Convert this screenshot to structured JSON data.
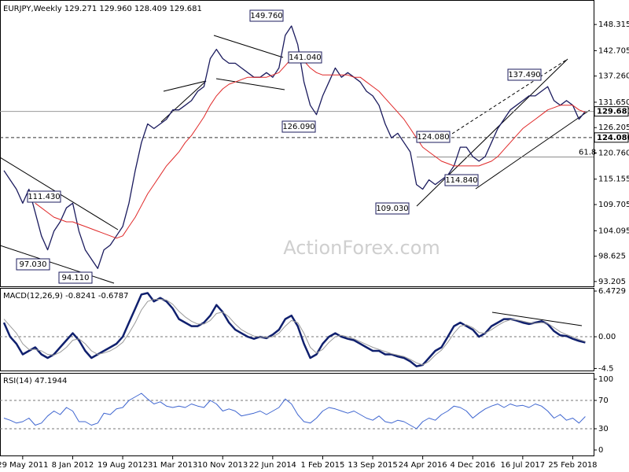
{
  "chart_data": [
    {
      "type": "line",
      "title": "EURJPY,Weekly  129.271 129.960 128.409 129.681",
      "watermark": "ActionForex.com",
      "x": [
        null,
        null,
        null,
        "29 May 2011",
        null,
        null,
        null,
        null,
        null,
        null,
        null,
        "8 Jan 2012",
        null,
        null,
        null,
        null,
        null,
        null,
        null,
        "19 Aug 2012",
        null,
        null,
        null,
        null,
        null,
        null,
        null,
        "31 Mar 2013",
        null,
        null,
        null,
        null,
        null,
        null,
        null,
        "10 Nov 2013",
        null,
        null,
        null,
        null,
        null,
        null,
        null,
        "22 Jun 2014",
        null,
        null,
        null,
        null,
        null,
        null,
        null,
        "1 Feb 2015",
        null,
        null,
        null,
        null,
        null,
        null,
        null,
        "13 Sep 2015",
        null,
        null,
        null,
        null,
        null,
        null,
        null,
        "24 Apr 2016",
        null,
        null,
        null,
        null,
        null,
        null,
        null,
        "4 Dec 2016",
        null,
        null,
        null,
        null,
        null,
        null,
        null,
        "16 Jul 2017",
        null,
        null,
        null,
        null,
        null,
        null,
        null,
        "25 Feb 2018",
        null,
        null
      ],
      "series": [
        {
          "color": "#1b1b5e",
          "values": [
            117,
            115,
            113,
            110,
            113,
            108,
            103,
            100,
            104,
            106,
            109,
            110,
            104,
            100,
            98,
            96,
            100,
            101,
            103,
            105,
            110,
            117,
            123,
            127,
            126,
            127,
            128,
            130,
            130,
            131,
            132,
            134,
            135,
            141,
            143,
            141,
            140,
            140,
            139,
            138,
            137,
            137,
            138,
            137,
            139,
            146,
            148,
            144,
            136,
            131,
            129,
            133,
            136,
            139,
            137,
            138,
            137,
            136,
            134,
            133,
            131,
            127,
            124,
            125,
            123,
            121,
            114,
            113,
            115,
            114,
            115,
            116,
            118,
            122,
            122,
            120,
            119,
            120,
            123,
            126,
            128,
            130,
            131,
            132,
            133,
            133,
            134,
            135,
            132,
            131,
            132,
            131,
            128,
            129.681
          ]
        },
        {
          "color": "#e02828",
          "values": [
            null,
            null,
            null,
            null,
            null,
            110,
            109,
            108,
            107,
            106.5,
            106,
            106,
            105.5,
            105,
            104.5,
            104,
            103.5,
            103,
            102.5,
            103,
            105,
            107,
            109.5,
            112,
            114,
            116,
            118,
            119.5,
            121,
            123,
            124.5,
            126.5,
            128.5,
            131,
            133,
            134.5,
            135.5,
            136,
            136.5,
            137,
            137,
            137,
            137,
            137.5,
            138,
            139.5,
            141,
            141.5,
            140.5,
            139,
            138,
            137.5,
            137.5,
            137.5,
            137.5,
            137.5,
            137,
            137,
            136,
            135,
            134,
            132.5,
            131,
            129.5,
            128,
            126,
            124,
            122,
            121,
            120,
            119,
            118.5,
            118,
            118,
            118,
            118,
            118,
            118.5,
            119,
            120,
            121.5,
            123,
            124.5,
            126,
            127,
            128,
            129,
            130,
            130.5,
            131,
            131,
            131,
            130,
            129.5
          ]
        }
      ],
      "ylim": [
        92.0,
        153.4
      ],
      "yticks": [
        93.205,
        98.625,
        104.095,
        109.705,
        115.155,
        {
          "value": 120.76,
          "label": "120.760"
        },
        126.205,
        {
          "value": 131.65,
          "label": "131.650"
        },
        {
          "value": 137.26,
          "label": "137.260"
        },
        142.705,
        148.315
      ],
      "grid": false,
      "levels": [
        {
          "value": 129.681,
          "style": "solid"
        },
        {
          "value": 124.08,
          "label": "124.080",
          "style": "dashed"
        }
      ],
      "fib_level": {
        "price": 119.9,
        "text": "61.8"
      },
      "annotations": [
        "149.760",
        "141.040",
        "126.090",
        "137.490",
        "124.080",
        "114.840",
        "109.030",
        "111.430",
        "97.030",
        "94.110"
      ]
    },
    {
      "type": "line",
      "title": "MACD(12,26,9) -0.8241 -0.6787",
      "series": [
        {
          "color": "#10206e",
          "values": [
            2,
            0,
            -1,
            -2.5,
            -2,
            -1.5,
            -2.5,
            -3,
            -2.5,
            -1.5,
            -0.5,
            0.5,
            -0.5,
            -2,
            -3,
            -2.5,
            -2,
            -1.5,
            -1,
            0,
            2,
            4,
            6,
            6.2,
            5,
            5.5,
            5,
            4,
            2.5,
            2,
            1.5,
            1.5,
            2,
            3,
            4.5,
            3.5,
            2,
            1,
            0.5,
            0,
            -0.3,
            0,
            -0.2,
            0.3,
            1,
            2.5,
            3,
            1.5,
            -1,
            -3,
            -2.5,
            -1,
            0,
            0.5,
            0,
            -0.3,
            -0.5,
            -1,
            -1.5,
            -2,
            -2,
            -2.5,
            -2.5,
            -2.8,
            -3,
            -3.5,
            -4.2,
            -4,
            -3,
            -2,
            -1.5,
            0,
            1.5,
            2,
            1.5,
            1,
            0,
            0.5,
            1.5,
            2,
            2.5,
            2.5,
            2.3,
            2.0,
            1.8,
            2.0,
            2.2,
            1.8,
            0.8,
            0.2,
            0.1,
            -0.3,
            -0.6,
            -0.8241
          ]
        },
        {
          "color": "#9a9a9a",
          "values": [
            2.5,
            1.5,
            0.5,
            -1,
            -1.8,
            -1.8,
            -2,
            -2.5,
            -2.6,
            -2.2,
            -1.5,
            -0.5,
            -0.3,
            -1,
            -2,
            -2.5,
            -2.3,
            -2,
            -1.5,
            -0.8,
            0.5,
            2,
            3.8,
            5,
            5.3,
            5.3,
            5.2,
            4.6,
            3.6,
            2.8,
            2.2,
            1.8,
            1.8,
            2.3,
            3.3,
            3.5,
            2.8,
            1.8,
            1,
            0.5,
            0.1,
            0,
            -0.1,
            0,
            0.5,
            1.5,
            2.3,
            2.0,
            0.5,
            -1.5,
            -2.3,
            -1.8,
            -0.8,
            0,
            0.2,
            0,
            -0.3,
            -0.7,
            -1.1,
            -1.5,
            -1.8,
            -2.1,
            -2.4,
            -2.6,
            -2.8,
            -3.2,
            -3.7,
            -4,
            -3.5,
            -2.6,
            -1.9,
            -0.8,
            0.5,
            1.5,
            1.7,
            1.3,
            0.6,
            0.5,
            1,
            1.6,
            2.1,
            2.4,
            2.4,
            2.2,
            2.0,
            1.9,
            2.0,
            1.9,
            1.3,
            0.7,
            0.3,
            0,
            -0.4,
            -0.6787
          ]
        }
      ],
      "ylim": [
        -4.9,
        6.92
      ],
      "yticks": [
        -4.5,
        {
          "value": 0,
          "label": "0.00"
        },
        6.4729
      ],
      "grid": "inner"
    },
    {
      "type": "line",
      "title": "RSI(14) 47.1944",
      "series": [
        {
          "color": "#3f66d0",
          "values": [
            45,
            42,
            38,
            40,
            45,
            35,
            38,
            48,
            55,
            50,
            60,
            55,
            40,
            40,
            35,
            38,
            52,
            50,
            58,
            60,
            70,
            75,
            80,
            72,
            65,
            68,
            62,
            60,
            62,
            60,
            65,
            62,
            60,
            70,
            65,
            55,
            58,
            55,
            48,
            50,
            52,
            55,
            50,
            55,
            60,
            72,
            65,
            50,
            40,
            38,
            45,
            55,
            60,
            58,
            55,
            52,
            55,
            50,
            45,
            42,
            48,
            40,
            38,
            42,
            40,
            35,
            30,
            40,
            45,
            42,
            50,
            55,
            62,
            60,
            55,
            45,
            52,
            58,
            62,
            65,
            60,
            65,
            62,
            63,
            60,
            65,
            62,
            55,
            45,
            50,
            42,
            45,
            38,
            47.1944
          ]
        }
      ],
      "ylim": [
        -8.9,
        108.9
      ],
      "yticks": [
        0,
        30,
        70,
        100
      ],
      "grid": "inner"
    }
  ]
}
